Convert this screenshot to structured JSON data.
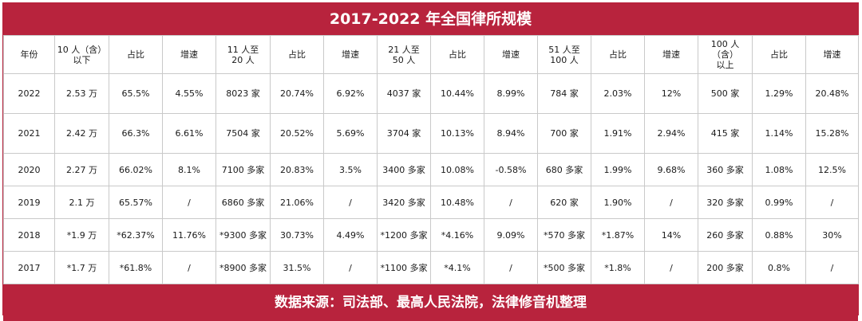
{
  "title": "2017-2022 年全国律所规模",
  "headers": [
    "年份",
    "10 人（含）\n以下",
    "占比",
    "增速",
    "11 人至\n20 人",
    "占比",
    "增速",
    "21 人至\n50 人",
    "占比",
    "增速",
    "51 人至\n100 人",
    "占比",
    "增速",
    "100 人（含）\n以上",
    "占比",
    "增速"
  ],
  "rows": [
    [
      "2022",
      "2.53 万",
      "65.5%",
      "4.55%",
      "8023 家",
      "20.74%",
      "6.92%",
      "4037 家",
      "10.44%",
      "8.99%",
      "784 家",
      "2.03%",
      "12%",
      "500 家",
      "1.29%",
      "20.48%"
    ],
    [
      "2021",
      "2.42 万",
      "66.3%",
      "6.61%",
      "7504 家",
      "20.52%",
      "5.69%",
      "3704 家",
      "10.13%",
      "8.94%",
      "700 家",
      "1.91%",
      "2.94%",
      "415 家",
      "1.14%",
      "15.28%"
    ],
    [
      "2020",
      "2.27 万",
      "66.02%",
      "8.1%",
      "7100 多家",
      "20.83%",
      "3.5%",
      "3400 多家",
      "10.08%",
      "-0.58%",
      "680 多家",
      "1.99%",
      "9.68%",
      "360 多家",
      "1.08%",
      "12.5%"
    ],
    [
      "2019",
      "2.1 万",
      "65.57%",
      "/",
      "6860 多家",
      "21.06%",
      "/",
      "3420 多家",
      "10.48%",
      "/",
      "620 家",
      "1.90%",
      "/",
      "320 多家",
      "0.99%",
      "/"
    ],
    [
      "2018",
      "*1.9 万",
      "*62.37%",
      "11.76%",
      "*9300 多家",
      "30.73%",
      "4.49%",
      "*1200 多家",
      "*4.16%",
      "9.09%",
      "*570 多家",
      "*1.87%",
      "14%",
      "260 多家",
      "0.88%",
      "30%"
    ],
    [
      "2017",
      "*1.7 万",
      "*61.8%",
      "/",
      "*8900 多家",
      "31.5%",
      "/",
      "*1100 多家",
      "*4.1%",
      "/",
      "*500 多家",
      "*1.8%",
      "/",
      "200 多家",
      "0.8%",
      "/"
    ]
  ],
  "footer": "数据来源：司法部、最高人民法院，法律修音机整理",
  "colors": {
    "brand": "#b8233d",
    "grid": "#c9c9c9",
    "text": "#1a1a1a"
  }
}
